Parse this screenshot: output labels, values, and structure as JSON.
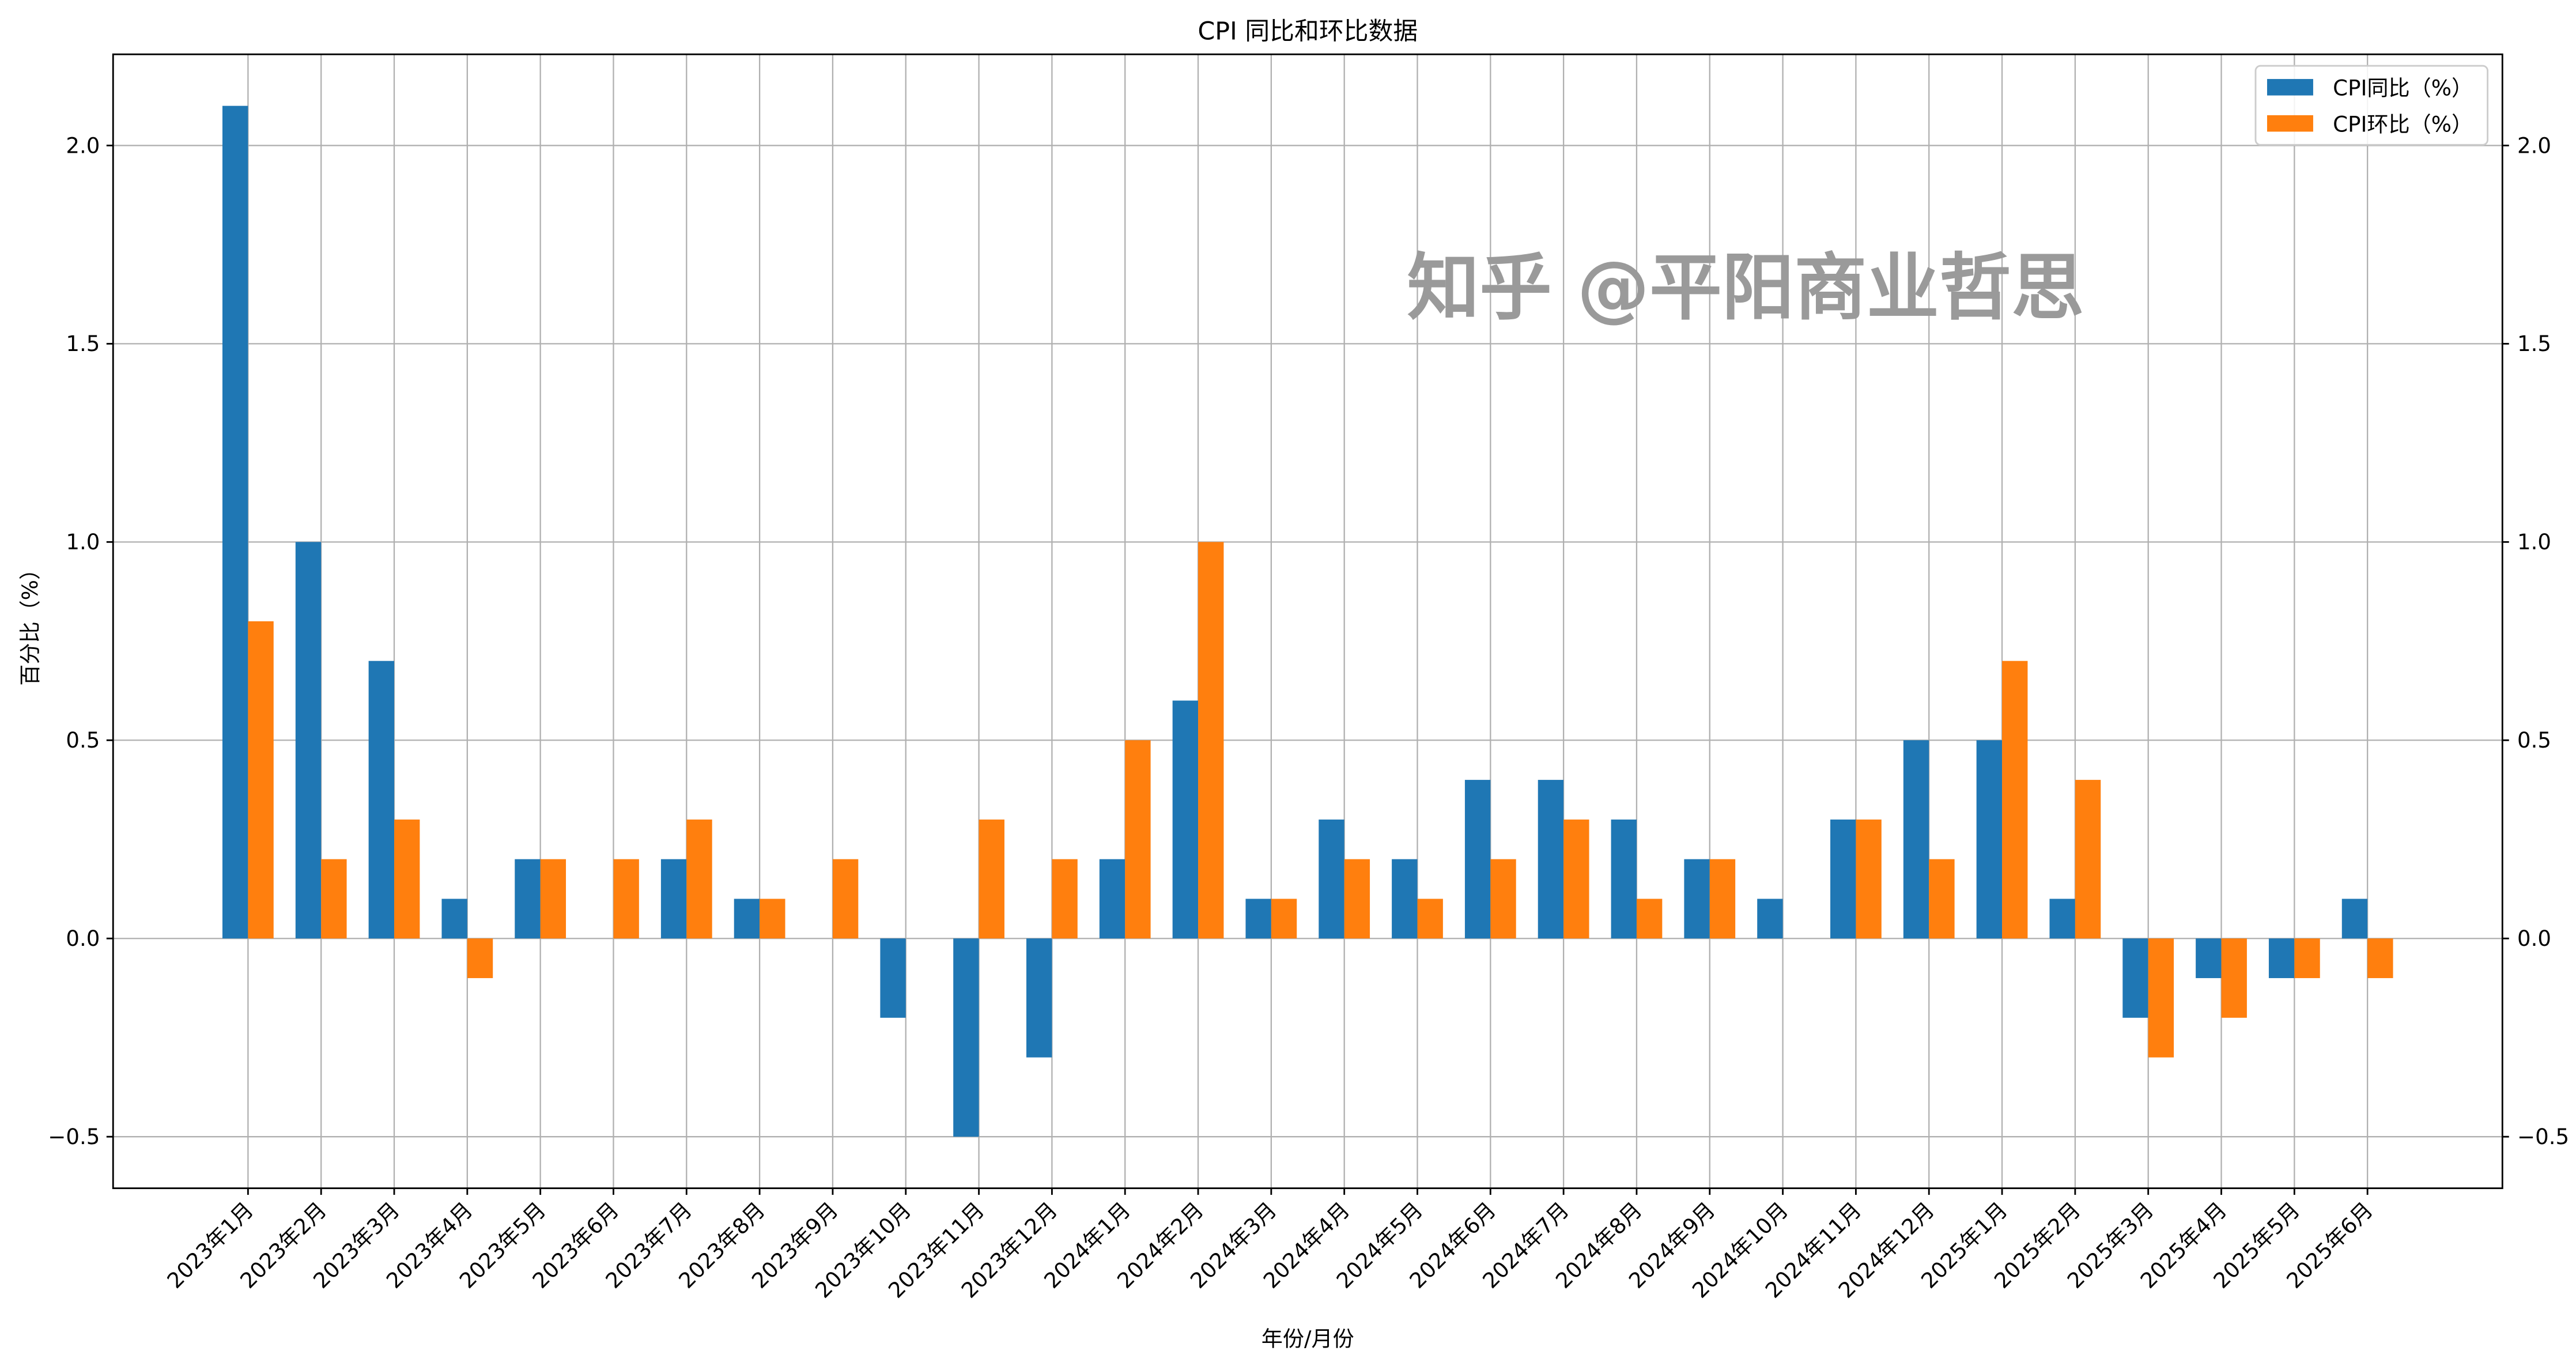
{
  "chart_data": {
    "type": "bar",
    "title": "CPI 同比和环比数据",
    "xlabel": "年份/月份",
    "ylabel": "百分比（%）",
    "ylim": [
      -0.63,
      2.23
    ],
    "yticks": [
      -0.5,
      0.0,
      0.5,
      1.0,
      1.5,
      2.0
    ],
    "ytick_labels": [
      "−0.5",
      "0.0",
      "0.5",
      "1.0",
      "1.5",
      "2.0"
    ],
    "secondary_y_axis": "right, same ticks",
    "grid": true,
    "legend_position": "top-right",
    "categories": [
      "2023年1月",
      "2023年2月",
      "2023年3月",
      "2023年4月",
      "2023年5月",
      "2023年6月",
      "2023年7月",
      "2023年8月",
      "2023年9月",
      "2023年10月",
      "2023年11月",
      "2023年12月",
      "2024年1月",
      "2024年2月",
      "2024年3月",
      "2024年4月",
      "2024年5月",
      "2024年6月",
      "2024年7月",
      "2024年8月",
      "2024年9月",
      "2024年10月",
      "2024年11月",
      "2024年12月",
      "2025年1月",
      "2025年2月",
      "2025年3月",
      "2025年4月",
      "2025年5月",
      "2025年6月"
    ],
    "series": [
      {
        "name": "CPI同比（%）",
        "color": "#1f77b4",
        "values": [
          2.1,
          1.0,
          0.7,
          0.1,
          0.2,
          0.0,
          0.2,
          0.1,
          0.0,
          -0.2,
          -0.5,
          -0.3,
          0.2,
          0.6,
          0.1,
          0.3,
          0.2,
          0.4,
          0.4,
          0.3,
          0.2,
          0.1,
          0.3,
          0.5,
          0.5,
          0.1,
          -0.2,
          -0.1,
          -0.1,
          0.1
        ]
      },
      {
        "name": "CPI环比（%）",
        "color": "#ff7f0e",
        "values": [
          0.8,
          0.2,
          0.3,
          -0.1,
          0.2,
          0.2,
          0.3,
          0.1,
          0.2,
          0.0,
          0.3,
          0.2,
          0.5,
          1.0,
          0.1,
          0.2,
          0.1,
          0.2,
          0.3,
          0.1,
          0.2,
          0.0,
          0.3,
          0.2,
          0.7,
          0.4,
          -0.3,
          -0.2,
          -0.1,
          -0.1
        ]
      }
    ]
  },
  "watermark": "知乎 @平阳商业哲思"
}
